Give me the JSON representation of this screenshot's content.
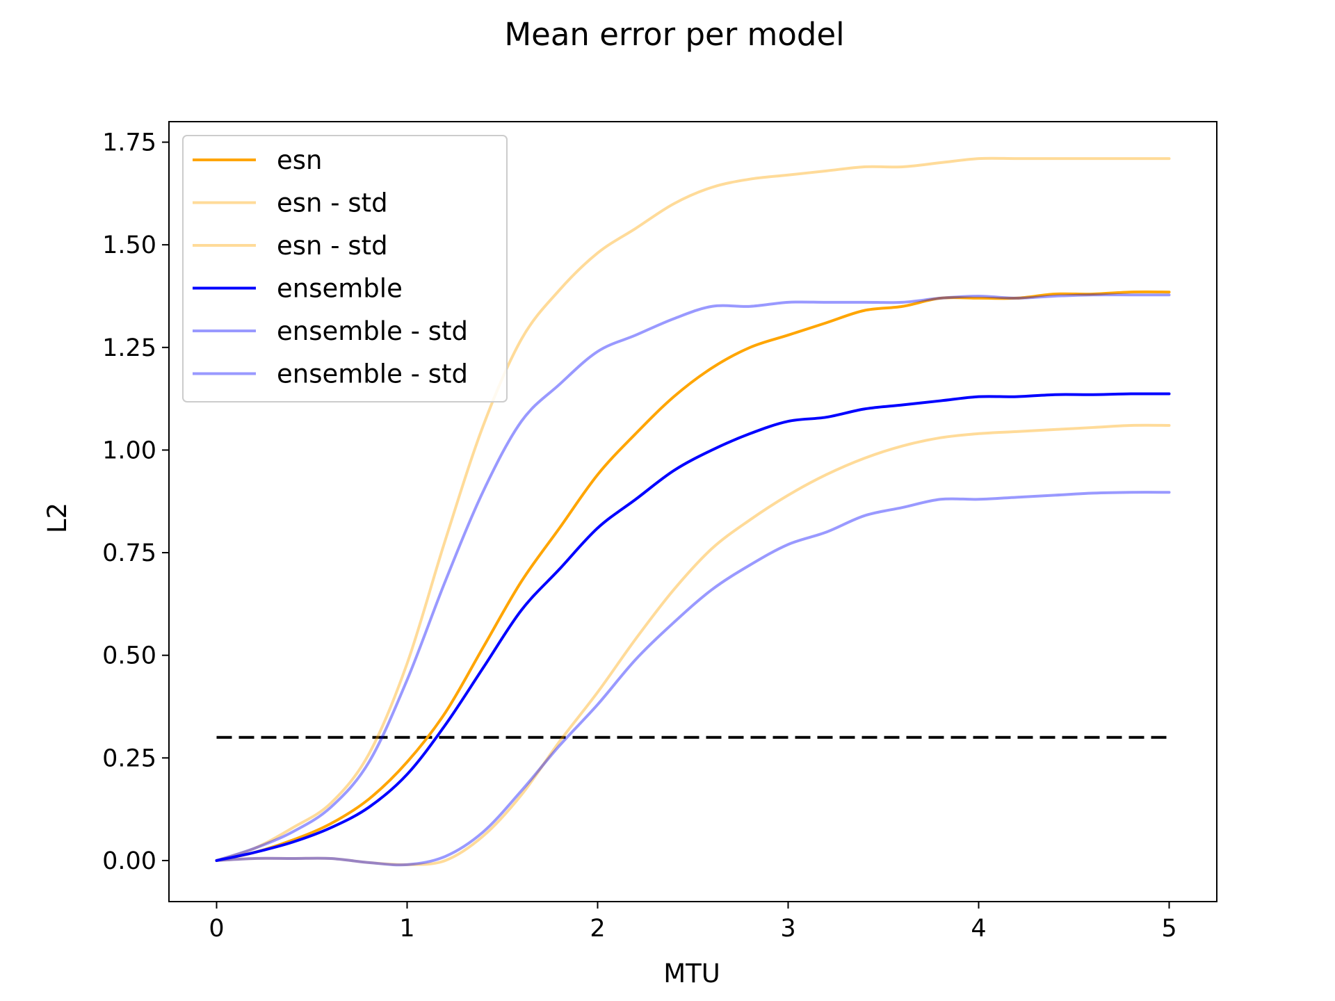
{
  "chart_data": {
    "type": "line",
    "title": "Mean error per model",
    "xlabel": "MTU",
    "ylabel": "L2",
    "xlim": [
      -0.25,
      5.25
    ],
    "ylim": [
      -0.1,
      1.8
    ],
    "xticks": [
      0,
      1,
      2,
      3,
      4,
      5
    ],
    "xtick_labels": [
      "0",
      "1",
      "2",
      "3",
      "4",
      "5"
    ],
    "yticks": [
      0.0,
      0.25,
      0.5,
      0.75,
      1.0,
      1.25,
      1.5,
      1.75
    ],
    "ytick_labels": [
      "0.00",
      "0.25",
      "0.50",
      "0.75",
      "1.00",
      "1.25",
      "1.50",
      "1.75"
    ],
    "grid": false,
    "legend_position": "upper-left",
    "x": [
      0,
      0.2,
      0.4,
      0.6,
      0.8,
      1.0,
      1.2,
      1.4,
      1.6,
      1.8,
      2.0,
      2.2,
      2.4,
      2.6,
      2.8,
      3.0,
      3.2,
      3.4,
      3.6,
      3.8,
      4.0,
      4.2,
      4.4,
      4.6,
      4.8,
      5.0
    ],
    "series": [
      {
        "name": "esn",
        "color": "#ffa500",
        "opacity": 1.0,
        "values": [
          0.0,
          0.02,
          0.05,
          0.09,
          0.15,
          0.24,
          0.36,
          0.52,
          0.68,
          0.81,
          0.94,
          1.04,
          1.13,
          1.2,
          1.25,
          1.28,
          1.31,
          1.34,
          1.35,
          1.37,
          1.37,
          1.37,
          1.38,
          1.38,
          1.385,
          1.385
        ]
      },
      {
        "name": "esn - std",
        "color": "#ffa500",
        "opacity": 0.4,
        "values": [
          0.0,
          0.03,
          0.08,
          0.14,
          0.26,
          0.48,
          0.78,
          1.06,
          1.27,
          1.39,
          1.48,
          1.54,
          1.6,
          1.64,
          1.66,
          1.67,
          1.68,
          1.69,
          1.69,
          1.7,
          1.71,
          1.71,
          1.71,
          1.71,
          1.71,
          1.71
        ]
      },
      {
        "name": "esn - std",
        "color": "#ffa500",
        "opacity": 0.4,
        "values": [
          0.0,
          0.005,
          0.005,
          0.005,
          -0.005,
          -0.01,
          0.0,
          0.06,
          0.16,
          0.29,
          0.41,
          0.54,
          0.66,
          0.76,
          0.83,
          0.89,
          0.94,
          0.98,
          1.01,
          1.03,
          1.04,
          1.045,
          1.05,
          1.055,
          1.06,
          1.06
        ]
      },
      {
        "name": "ensemble",
        "color": "#0000ff",
        "opacity": 1.0,
        "values": [
          0.0,
          0.02,
          0.045,
          0.08,
          0.13,
          0.21,
          0.33,
          0.47,
          0.61,
          0.71,
          0.81,
          0.88,
          0.95,
          1.0,
          1.04,
          1.07,
          1.08,
          1.1,
          1.11,
          1.12,
          1.13,
          1.13,
          1.135,
          1.135,
          1.137,
          1.137
        ]
      },
      {
        "name": "ensemble - std",
        "color": "#0000ff",
        "opacity": 0.4,
        "values": [
          0.0,
          0.03,
          0.07,
          0.13,
          0.24,
          0.44,
          0.68,
          0.9,
          1.07,
          1.16,
          1.24,
          1.28,
          1.32,
          1.35,
          1.35,
          1.36,
          1.36,
          1.36,
          1.36,
          1.37,
          1.375,
          1.37,
          1.375,
          1.378,
          1.378,
          1.378
        ]
      },
      {
        "name": "ensemble - std",
        "color": "#0000ff",
        "opacity": 0.4,
        "values": [
          0.0,
          0.005,
          0.005,
          0.005,
          -0.005,
          -0.01,
          0.01,
          0.07,
          0.17,
          0.28,
          0.38,
          0.49,
          0.58,
          0.66,
          0.72,
          0.77,
          0.8,
          0.84,
          0.86,
          0.88,
          0.88,
          0.885,
          0.89,
          0.895,
          0.897,
          0.897
        ]
      }
    ],
    "reference_lines": [
      {
        "y": 0.3,
        "x_start": 0,
        "x_end": 5,
        "color": "#000000",
        "style": "dashed"
      }
    ]
  }
}
